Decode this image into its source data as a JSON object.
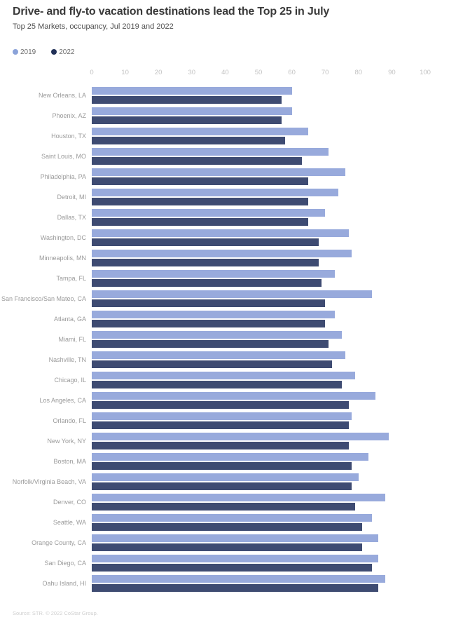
{
  "header": {
    "title": "Drive- and fly-to vacation destinations lead the Top 25 in July",
    "subtitle": "Top 25 Markets, occupancy, Jul 2019 and 2022"
  },
  "legend": [
    {
      "label": "2019",
      "dot_color": "#8ba3d9"
    },
    {
      "label": "2022",
      "dot_color": "#223158"
    }
  ],
  "chart_data": {
    "type": "bar",
    "orientation": "horizontal",
    "title": "Drive- and fly-to vacation destinations lead the Top 25 in July",
    "subtitle": "Top 25 Markets, occupancy, Jul 2019 and 2022",
    "xlabel": "",
    "ylabel": "",
    "xlim": [
      0,
      100
    ],
    "x_ticks": [
      0,
      10,
      20,
      30,
      40,
      50,
      60,
      70,
      80,
      90,
      100
    ],
    "grid": false,
    "legend_position": "top-left",
    "categories": [
      "New Orleans, LA",
      "Phoenix, AZ",
      "Houston, TX",
      "Saint Louis, MO",
      "Philadelphia, PA",
      "Detroit, MI",
      "Dallas, TX",
      "Washington, DC",
      "Minneapolis, MN",
      "Tampa, FL",
      "San Francisco/San Mateo, CA",
      "Atlanta, GA",
      "Miami, FL",
      "Nashville, TN",
      "Chicago, IL",
      "Los Angeles, CA",
      "Orlando, FL",
      "New York, NY",
      "Boston, MA",
      "Norfolk/Virginia Beach, VA",
      "Denver, CO",
      "Seattle, WA",
      "Orange County, CA",
      "San Diego, CA",
      "Oahu Island, HI"
    ],
    "series": [
      {
        "name": "2019",
        "color": "#98aadc",
        "values": [
          60,
          60,
          65,
          71,
          76,
          74,
          70,
          77,
          78,
          73,
          84,
          73,
          75,
          76,
          79,
          85,
          78,
          89,
          83,
          80,
          88,
          84,
          86,
          86,
          88
        ]
      },
      {
        "name": "2022",
        "color": "#3e4b72",
        "values": [
          57,
          57,
          58,
          63,
          65,
          65,
          65,
          68,
          68,
          69,
          70,
          70,
          71,
          72,
          75,
          77,
          77,
          77,
          78,
          78,
          79,
          81,
          81,
          84,
          86
        ]
      }
    ]
  },
  "footer": {
    "source": "Source: STR. © 2022 CoStar Group."
  }
}
